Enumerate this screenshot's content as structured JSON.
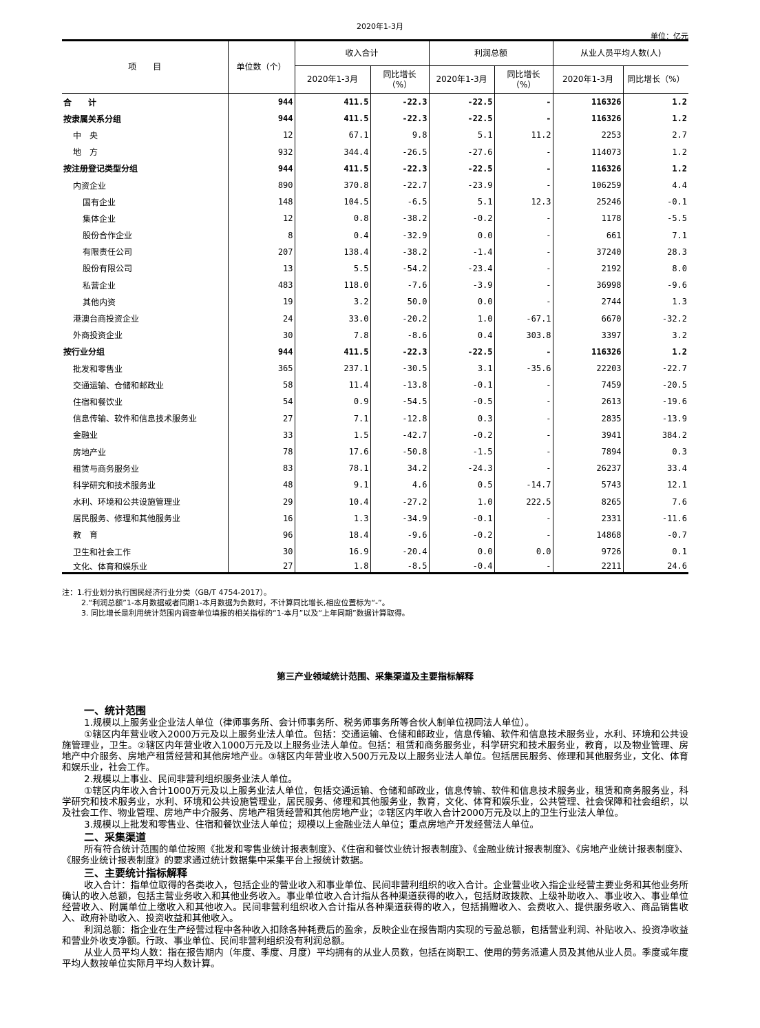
{
  "header": {
    "period": "2020年1-3月",
    "unit": "单位：亿元"
  },
  "table": {
    "col_item": "项　　目",
    "col_units": "单位数（个）",
    "group_income": "收入合计",
    "group_profit": "利润总额",
    "group_employees": "从业人员平均人数(人)",
    "sub_period": "2020年1-3月",
    "sub_growth": "同比增长（%）",
    "rows": [
      {
        "name": "合　　计",
        "level": 0,
        "bold": true,
        "cells": [
          "944",
          "411.5",
          "-22.3",
          "-22.5",
          "-",
          "116326",
          "1.2"
        ]
      },
      {
        "name": "按隶属关系分组",
        "level": 0,
        "bold": true,
        "cells": [
          "944",
          "411.5",
          "-22.3",
          "-22.5",
          "-",
          "116326",
          "1.2"
        ]
      },
      {
        "name": "中　央",
        "level": 1,
        "bold": false,
        "cells": [
          "12",
          "67.1",
          "9.8",
          "5.1",
          "11.2",
          "2253",
          "2.7"
        ]
      },
      {
        "name": "地　方",
        "level": 1,
        "bold": false,
        "cells": [
          "932",
          "344.4",
          "-26.5",
          "-27.6",
          "-",
          "114073",
          "1.2"
        ]
      },
      {
        "name": "按注册登记类型分组",
        "level": 0,
        "bold": true,
        "cells": [
          "944",
          "411.5",
          "-22.3",
          "-22.5",
          "-",
          "116326",
          "1.2"
        ]
      },
      {
        "name": "内资企业",
        "level": 1,
        "bold": false,
        "cells": [
          "890",
          "370.8",
          "-22.7",
          "-23.9",
          "-",
          "106259",
          "4.4"
        ]
      },
      {
        "name": "国有企业",
        "level": 2,
        "bold": false,
        "cells": [
          "148",
          "104.5",
          "-6.5",
          "5.1",
          "12.3",
          "25246",
          "-0.1"
        ]
      },
      {
        "name": "集体企业",
        "level": 2,
        "bold": false,
        "cells": [
          "12",
          "0.8",
          "-38.2",
          "-0.2",
          "-",
          "1178",
          "-5.5"
        ]
      },
      {
        "name": "股份合作企业",
        "level": 2,
        "bold": false,
        "cells": [
          "8",
          "0.4",
          "-32.9",
          "0.0",
          "-",
          "661",
          "7.1"
        ]
      },
      {
        "name": "有限责任公司",
        "level": 2,
        "bold": false,
        "cells": [
          "207",
          "138.4",
          "-38.2",
          "-1.4",
          "-",
          "37240",
          "28.3"
        ]
      },
      {
        "name": "股份有限公司",
        "level": 2,
        "bold": false,
        "cells": [
          "13",
          "5.5",
          "-54.2",
          "-23.4",
          "-",
          "2192",
          "8.0"
        ]
      },
      {
        "name": "私营企业",
        "level": 2,
        "bold": false,
        "cells": [
          "483",
          "118.0",
          "-7.6",
          "-3.9",
          "-",
          "36998",
          "-9.6"
        ]
      },
      {
        "name": "其他内资",
        "level": 2,
        "bold": false,
        "cells": [
          "19",
          "3.2",
          "50.0",
          "0.0",
          "-",
          "2744",
          "1.3"
        ]
      },
      {
        "name": "港澳台商投资企业",
        "level": 1,
        "bold": false,
        "cells": [
          "24",
          "33.0",
          "-20.2",
          "1.0",
          "-67.1",
          "6670",
          "-32.2"
        ]
      },
      {
        "name": "外商投资企业",
        "level": 1,
        "bold": false,
        "cells": [
          "30",
          "7.8",
          "-8.6",
          "0.4",
          "303.8",
          "3397",
          "3.2"
        ]
      },
      {
        "name": "按行业分组",
        "level": 0,
        "bold": true,
        "cells": [
          "944",
          "411.5",
          "-22.3",
          "-22.5",
          "-",
          "116326",
          "1.2"
        ]
      },
      {
        "name": "批发和零售业",
        "level": 1,
        "bold": false,
        "cells": [
          "365",
          "237.1",
          "-30.5",
          "3.1",
          "-35.6",
          "22203",
          "-22.7"
        ]
      },
      {
        "name": "交通运输、仓储和邮政业",
        "level": 1,
        "bold": false,
        "cells": [
          "58",
          "11.4",
          "-13.8",
          "-0.1",
          "-",
          "7459",
          "-20.5"
        ]
      },
      {
        "name": "住宿和餐饮业",
        "level": 1,
        "bold": false,
        "cells": [
          "54",
          "0.9",
          "-54.5",
          "-0.5",
          "-",
          "2613",
          "-19.6"
        ]
      },
      {
        "name": "信息传输、软件和信息技术服务业",
        "level": 1,
        "bold": false,
        "cells": [
          "27",
          "7.1",
          "-12.8",
          "0.3",
          "-",
          "2835",
          "-13.9"
        ]
      },
      {
        "name": "金融业",
        "level": 1,
        "bold": false,
        "cells": [
          "33",
          "1.5",
          "-42.7",
          "-0.2",
          "-",
          "3941",
          "384.2"
        ]
      },
      {
        "name": "房地产业",
        "level": 1,
        "bold": false,
        "cells": [
          "78",
          "17.6",
          "-50.8",
          "-1.5",
          "-",
          "7894",
          "0.3"
        ]
      },
      {
        "name": "租赁与商务服务业",
        "level": 1,
        "bold": false,
        "cells": [
          "83",
          "78.1",
          "34.2",
          "-24.3",
          "-",
          "26237",
          "33.4"
        ]
      },
      {
        "name": "科学研究和技术服务业",
        "level": 1,
        "bold": false,
        "cells": [
          "48",
          "9.1",
          "4.6",
          "0.5",
          "-14.7",
          "5743",
          "12.1"
        ]
      },
      {
        "name": "水利、环境和公共设施管理业",
        "level": 1,
        "bold": false,
        "cells": [
          "29",
          "10.4",
          "-27.2",
          "1.0",
          "222.5",
          "8265",
          "7.6"
        ]
      },
      {
        "name": "居民服务、修理和其他服务业",
        "level": 1,
        "bold": false,
        "cells": [
          "16",
          "1.3",
          "-34.9",
          "-0.1",
          "-",
          "2331",
          "-11.6"
        ]
      },
      {
        "name": "教　育",
        "level": 1,
        "bold": false,
        "cells": [
          "96",
          "18.4",
          "-9.6",
          "-0.2",
          "-",
          "14868",
          "-0.7"
        ]
      },
      {
        "name": "卫生和社会工作",
        "level": 1,
        "bold": false,
        "cells": [
          "30",
          "16.9",
          "-20.4",
          "0.0",
          "0.0",
          "9726",
          "0.1"
        ]
      },
      {
        "name": "文化、体育和娱乐业",
        "level": 1,
        "bold": false,
        "cells": [
          "27",
          "1.8",
          "-8.5",
          "-0.4",
          "-",
          "2211",
          "24.6"
        ]
      }
    ]
  },
  "notes": [
    "注：1.行业划分执行国民经济行业分类（GB/T 4754-2017）。",
    "2.“利润总额”1-本月数据或者同期1-本月数据为负数时，不计算同比增长,相应位置标为“-”。",
    "3. 同比增长是利用统计范围内调查单位填报的相关指标的“1-本月”以及“上年同期”数据计算取得。"
  ],
  "explanation": {
    "title": "第三产业领域统计范围、采集渠道及主要指标解释",
    "sections": [
      {
        "heading": "一、统计范围",
        "paragraphs": [
          "1.规模以上服务业企业法人单位（律师事务所、会计师事务所、税务师事务所等合伙人制单位视同法人单位）。",
          "①辖区内年营业收入2000万元及以上服务业法人单位。包括：交通运输、仓储和邮政业，信息传输、软件和信息技术服务业，水利、环境和公共设施管理业，卫生。②辖区内年营业收入1000万元及以上服务业法人单位。包括：租赁和商务服务业，科学研究和技术服务业，教育，以及物业管理、房地产中介服务、房地产租赁经营和其他房地产业。③辖区内年营业收入500万元及以上服务业法人单位。包括居民服务、修理和其他服务业，文化、体育和娱乐业，社会工作。",
          "2.规模以上事业、民间非营利组织服务业法人单位。",
          "①辖区内年收入合计1000万元及以上服务业法人单位，包括交通运输、仓储和邮政业，信息传输、软件和信息技术服务业，租赁和商务服务业，科学研究和技术服务业，水利、环境和公共设施管理业，居民服务、修理和其他服务业，教育，文化、体育和娱乐业，公共管理、社会保障和社会组织，以及社会工作、物业管理、房地产中介服务、房地产租赁经营和其他房地产业；②辖区内年收入合计2000万元及以上的卫生行业法人单位。",
          "3.规模以上批发和零售业、住宿和餐饮业法人单位；规模以上金融业法人单位；重点房地产开发经营法人单位。"
        ]
      },
      {
        "heading": "二、采集渠道",
        "paragraphs": [
          "所有符合统计范围的单位按照《批发和零售业统计报表制度》、《住宿和餐饮业统计报表制度》、《金融业统计报表制度》、《房地产业统计报表制度》、《服务业统计报表制度》的要求通过统计数据集中采集平台上报统计数据。"
        ]
      },
      {
        "heading": "三、主要统计指标解释",
        "paragraphs": [
          "收入合计：指单位取得的各类收入，包括企业的营业收入和事业单位、民间非营利组织的收入合计。企业营业收入指企业经营主要业务和其他业务所确认的收入总额，包括主营业务收入和其他业务收入。事业单位收入合计指从各种渠道获得的收入，包括财政拨款、上级补助收入、事业收入、事业单位经营收入、附属单位上缴收入和其他收入。民间非营利组织收入合计指从各种渠道获得的收入，包括捐赠收入、会费收入、提供服务收入、商品销售收入、政府补助收入、投资收益和其他收入。",
          "利润总额：指企业在生产经营过程中各种收入扣除各种耗费后的盈余，反映企业在报告期内实现的亏盈总额，包括营业利润、补贴收入、投资净收益和营业外收支净额。行政、事业单位、民间非营利组织没有利润总额。",
          "从业人员平均人数：指在报告期内（年度、季度、月度）平均拥有的从业人员数，包括在岗职工、使用的劳务派遣人员及其他从业人员。季度或年度平均人数按单位实际月平均人数计算。"
        ]
      }
    ]
  }
}
